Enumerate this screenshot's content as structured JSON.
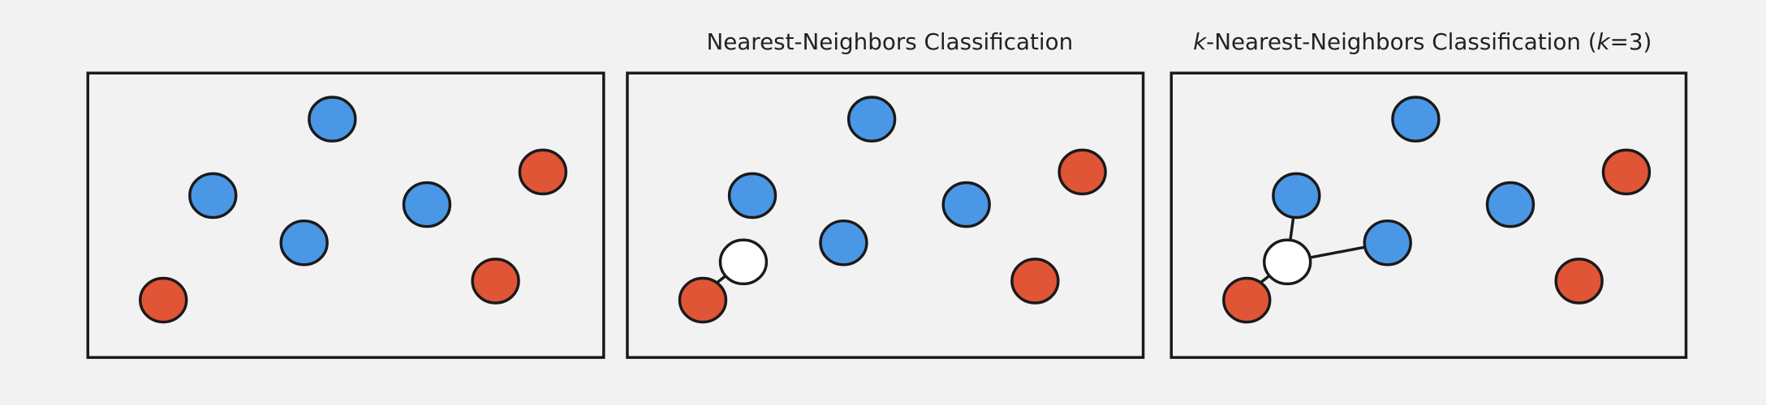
{
  "panels": [
    {
      "title_parts": []
    },
    {
      "title_parts": [
        {
          "text": "Nearest-Neighbors Classification",
          "italic": false
        }
      ]
    },
    {
      "title_parts": [
        {
          "text": "k",
          "italic": true
        },
        {
          "text": "-Nearest-Neighbors Classification (",
          "italic": false
        },
        {
          "text": "k",
          "italic": true
        },
        {
          "text": "=3)",
          "italic": false
        }
      ]
    }
  ]
}
